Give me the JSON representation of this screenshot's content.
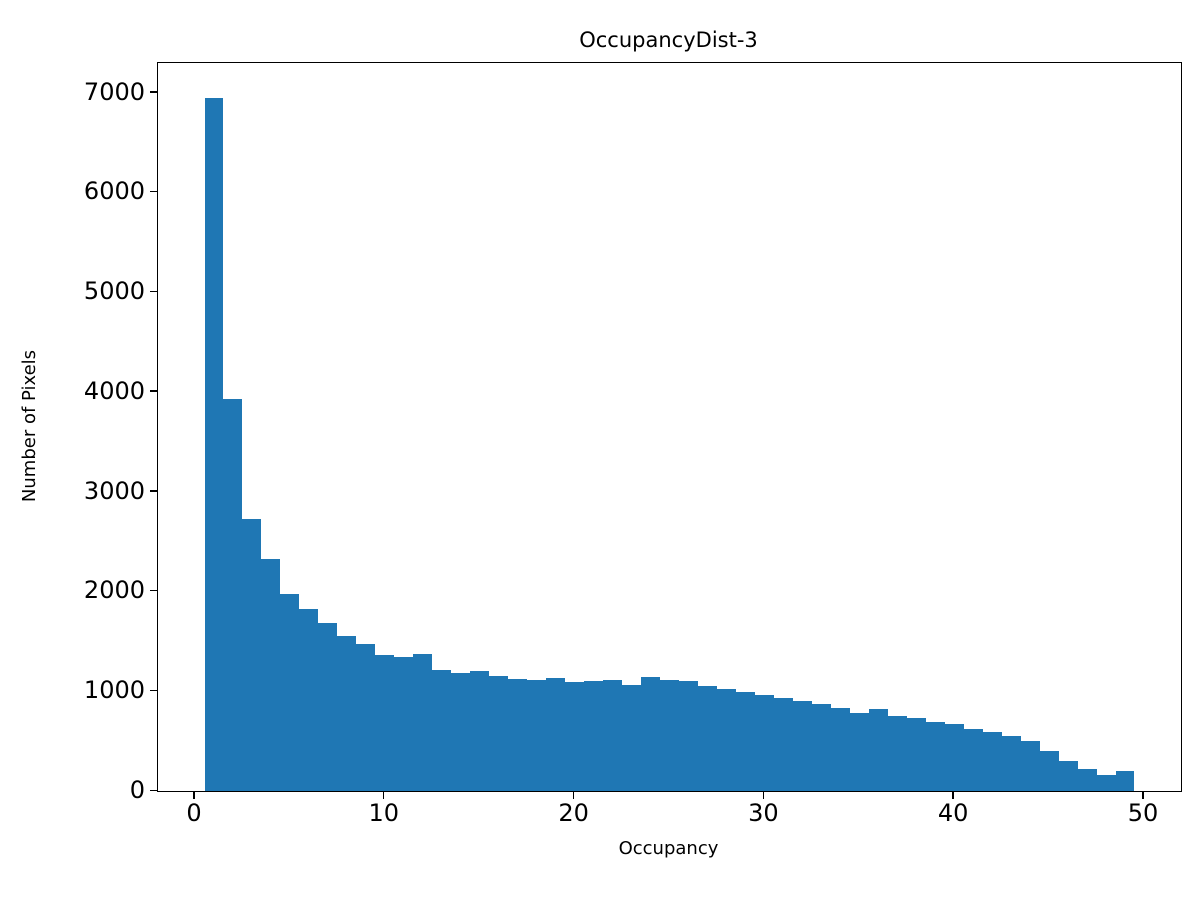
{
  "chart_data": {
    "type": "bar",
    "subtype": "histogram",
    "title": "OccupancyDist-3",
    "xlabel": "Occupancy",
    "ylabel": "Number of Pixels",
    "bin_start": 0.5,
    "bin_width": 1,
    "values": [
      6950,
      3930,
      2730,
      2330,
      1970,
      1820,
      1680,
      1550,
      1470,
      1360,
      1340,
      1370,
      1210,
      1180,
      1200,
      1150,
      1120,
      1110,
      1130,
      1090,
      1100,
      1110,
      1060,
      1140,
      1110,
      1100,
      1050,
      1020,
      990,
      960,
      930,
      900,
      870,
      830,
      780,
      820,
      750,
      730,
      690,
      670,
      620,
      590,
      550,
      500,
      400,
      300,
      220,
      160,
      200
    ],
    "xlim": [
      -1.95,
      51.95
    ],
    "ylim": [
      0,
      7297.5
    ],
    "xticks": [
      0,
      10,
      20,
      30,
      40,
      50
    ],
    "yticks": [
      0,
      1000,
      2000,
      3000,
      4000,
      5000,
      6000,
      7000
    ],
    "bar_color": "#1f77b4",
    "frame_color": "#000000",
    "grid": false,
    "legend_position": "none"
  }
}
